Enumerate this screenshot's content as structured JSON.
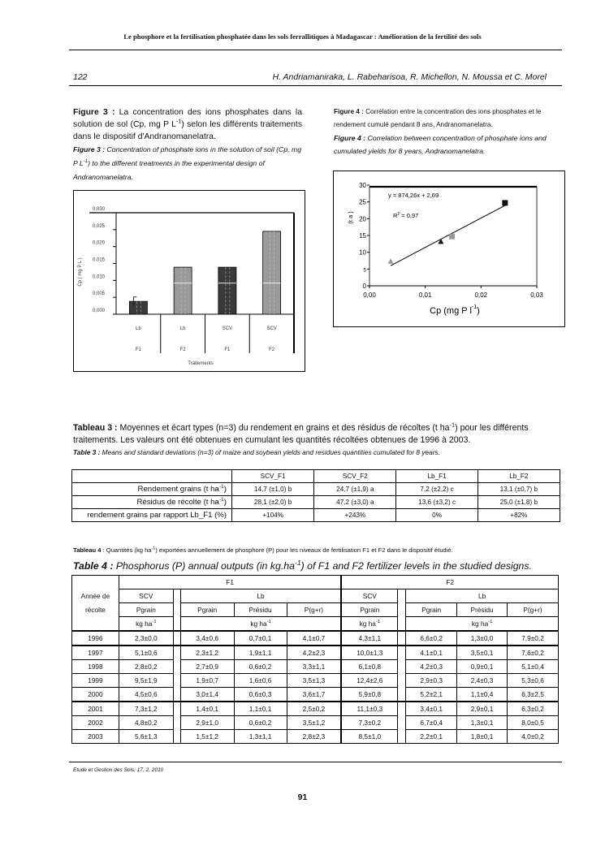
{
  "header": {
    "running_title": "Le phosphore et la fertilisation phosphatée dans les sols ferrallitiques à Madagascar : Amélioration de la fertilité des sols",
    "page_number": "122",
    "authors": "H. Andriamaniraka, L. Rabeharisoa, R. Michellon, N. Moussa et C. Morel"
  },
  "figure3": {
    "label_fr": "Figure 3 :",
    "caption_fr_a": " La concentration des ions phosphates dans la solution de sol (Cp, mg P L",
    "caption_fr_sup": "-1",
    "caption_fr_b": ") selon les différents traitements dans le dispositif d'Andranomanelatra.",
    "label_en": "Figure 3 :",
    "caption_en_a": " Concentration of phosphate ions in the solution of soil (Cp, mg P L",
    "caption_en_sup": "-1",
    "caption_en_b": ") to the different treatments in the experimental design of Andranomanelatra."
  },
  "figure4": {
    "label_fr": "Figure 4 :",
    "caption_fr": " Corrélation entre la concentration des ions phosphates et le rendement cumulé pendant 8 ans, Andranomanelatra.",
    "label_en": "Figure 4 :",
    "caption_en": " Correlation between concentration of phosphate ions and cumulated yields for 8 years, Andranomanelatra."
  },
  "chart_data": [
    {
      "type": "bar",
      "ylabel": "Cp ( mg P L )",
      "xlabel": "Traitements",
      "categories": [
        [
          "Lb",
          "F1"
        ],
        [
          "Lb",
          "F2"
        ],
        [
          "SCV",
          "F1"
        ],
        [
          "SCV",
          "F2"
        ]
      ],
      "values": [
        0.0038,
        0.0139,
        0.0139,
        0.0245
      ],
      "error": [
        0.0013,
        null,
        null,
        null
      ],
      "colors": [
        "#3a3a3a",
        "#9a9a9a",
        "#3a3a3a",
        "#9a9a9a"
      ],
      "yticks": [
        "0,000",
        "0,005",
        "0,010",
        "0,015",
        "0,020",
        "0,025",
        "0,030"
      ],
      "ylim": [
        0,
        0.03
      ]
    },
    {
      "type": "scatter",
      "xlabel": "Cp (mg P",
      "xlabel_sup": "-1",
      "xlabel_unit": " l",
      "xlabel_end": ")",
      "ylabel": "(t a  )",
      "equation": "y = 874,26x + 2,69",
      "r2_label": "R",
      "r2_sup": "2",
      "r2_value": " = 0,97",
      "xlim": [
        0,
        0.03
      ],
      "ylim": [
        0,
        30
      ],
      "xticks": [
        "0,00",
        "0,01",
        "0,02",
        "0,03"
      ],
      "yticks": [
        "0",
        "5",
        "10",
        "15",
        "20",
        "25",
        "30"
      ],
      "points": [
        {
          "x": 0.0038,
          "y": 7.2,
          "marker": "triangle",
          "color": "#999999"
        },
        {
          "x": 0.0128,
          "y": 13.1,
          "marker": "triangle",
          "color": "#111111"
        },
        {
          "x": 0.0148,
          "y": 14.7,
          "marker": "square",
          "color": "#999999"
        },
        {
          "x": 0.0243,
          "y": 24.7,
          "marker": "square",
          "color": "#111111"
        }
      ],
      "trend": {
        "slope": 874.26,
        "intercept": 2.69,
        "x_range": [
          0.0038,
          0.0243
        ]
      }
    }
  ],
  "table3": {
    "label_fr": "Tableau 3 :",
    "caption_fr_a": " Moyennes et écart types (n=3) du rendement en grains et des résidus de récoltes (t ha",
    "caption_fr_sup": "-1",
    "caption_fr_b": ") pour les différents traitements. Les valeurs ont été obtenues en cumulant les quantités récoltées obtenues de 1996 à 2003.",
    "label_en": "Table 3 :",
    "caption_en": " Means and standard deviations (n=3) of maize and soybean yields and residues quantities cumulated for 8 years.",
    "columns": [
      "SCV_F1",
      "SCV_F2",
      "Lb_F1",
      "Lb_F2"
    ],
    "rows": [
      {
        "label": "Rendement grains (t ha",
        "sup": "-1",
        "end": ")",
        "values": [
          "14,7 (±1,0) b",
          "24,7 (±1,9) a",
          "7,2 (±2,2) c",
          "13,1 (±0,7) b"
        ]
      },
      {
        "label": "Résidus de récolte (t ha",
        "sup": "-1",
        "end": ")",
        "values": [
          "28,1 (±2,0) b",
          "47,2 (±3,0) a",
          "13,6 (±3,2) c",
          "25,0 (±1,8) b"
        ]
      },
      {
        "label": "rendement grains par rapport Lb_F1 (%)",
        "sup": "",
        "end": "",
        "values": [
          "+104%",
          "+243%",
          "0%",
          "+82%"
        ]
      }
    ]
  },
  "table4": {
    "label_fr": "Tableau 4",
    "caption_fr_a": " : Quantités (kg ha",
    "caption_fr_sup": "-1",
    "caption_fr_b": ") exportées annuellement de phosphore (P) pour les niveaux de fertilisation F1 et F2 dans le dispositif étudié.",
    "label_en": "Table 4 :",
    "caption_en_a": " Phosphorus (P) annual outputs (in kg.ha",
    "caption_en_sup": "-1",
    "caption_en_b": ") of F1 and F2 fertilizer levels in the studied designs.",
    "year_header_1": "Année de",
    "year_header_2": "récolte",
    "f1": "F1",
    "f2": "F2",
    "scv": "SCV",
    "lb": "Lb",
    "pgrain": "Pgrain",
    "presidu": "Présidu",
    "pgr": "P(g+r)",
    "unit": "kg ha",
    "unit_sup": "-1",
    "rows": [
      [
        "1996",
        "2,3±0,0",
        "3,4±0,6",
        "0,7±0,1",
        "4,1±0,7",
        "4,3±1,1",
        "6,6±0,2",
        "1,3±0,0",
        "7,9±0,2"
      ],
      [
        "1997",
        "5,1±0,6",
        "2,3±1,2",
        "1,9±1,1",
        "4,2±2,3",
        "10,0±1,3",
        "4,1±0,1",
        "3,5±0,1",
        "7,6±0,2"
      ],
      [
        "1998",
        "2,8±0,2",
        "2,7±0,9",
        "0,6±0,2",
        "3,3±1,1",
        "6,1±0,8",
        "4,2±0,3",
        "0,9±0,1",
        "5,1±0,4"
      ],
      [
        "1999",
        "9,5±1,9",
        "1,9±0,7",
        "1,6±0,6",
        "3,5±1,3",
        "12,4±2,6",
        "2,9±0,3",
        "2,4±0,3",
        "5,3±0,6"
      ],
      [
        "2000",
        "4,5±0,6",
        "3,0±1,4",
        "0,6±0,3",
        "3,6±1,7",
        "5,9±0,8",
        "5,2±2,1",
        "1,1±0,4",
        "6,3±2,5"
      ],
      [
        "2001",
        "7,3±1,2",
        "1,4±0,1",
        "1,1±0,1",
        "2,5±0,2",
        "11,1±0,3",
        "3,4±0,1",
        "2,9±0,1",
        "6,3±0,2"
      ],
      [
        "2002",
        "4,8±0,2",
        "2,9±1,0",
        "0,6±0,2",
        "3,5±1,2",
        "7,3±0,2",
        "6,7±0,4",
        "1,3±0,1",
        "8,0±0,5"
      ],
      [
        "2003",
        "5,6±1,3",
        "1,5±1,2",
        "1,3±1,1",
        "2,8±2,3",
        "8,5±1,0",
        "2,2±0,1",
        "1,8±0,1",
        "4,0±0,2"
      ]
    ]
  },
  "footer": {
    "journal": "Etude et Gestion des Sols, 17, 2, 2010",
    "folio": "91"
  }
}
